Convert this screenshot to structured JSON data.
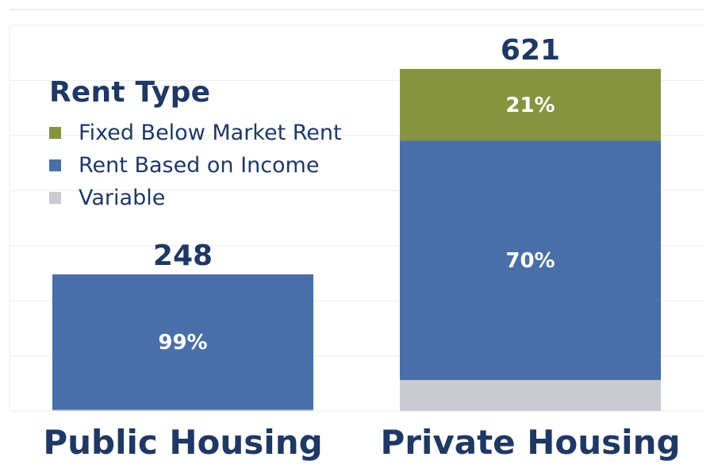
{
  "chart_data": {
    "type": "bar",
    "stacked": true,
    "categories": [
      "Public Housing",
      "Private Housing"
    ],
    "totals": [
      248,
      621
    ],
    "series": [
      {
        "name": "Fixed Below Market Rent",
        "color": "#86943f",
        "values": [
          0,
          130
        ],
        "labels": [
          "",
          "21%"
        ]
      },
      {
        "name": "Rent Based on Income",
        "color": "#4a6fa8",
        "values": [
          246,
          435
        ],
        "labels": [
          "99%",
          "70%"
        ]
      },
      {
        "name": "Variable",
        "color": "#c8ccd2",
        "values": [
          2,
          56
        ],
        "labels": [
          "",
          ""
        ]
      }
    ],
    "ylim": [
      0,
      700
    ],
    "grid": true,
    "legend": {
      "title": "Rent Type",
      "position": "top-left"
    }
  },
  "colors": {
    "text": "#1f3864",
    "grid": "#ececec"
  }
}
